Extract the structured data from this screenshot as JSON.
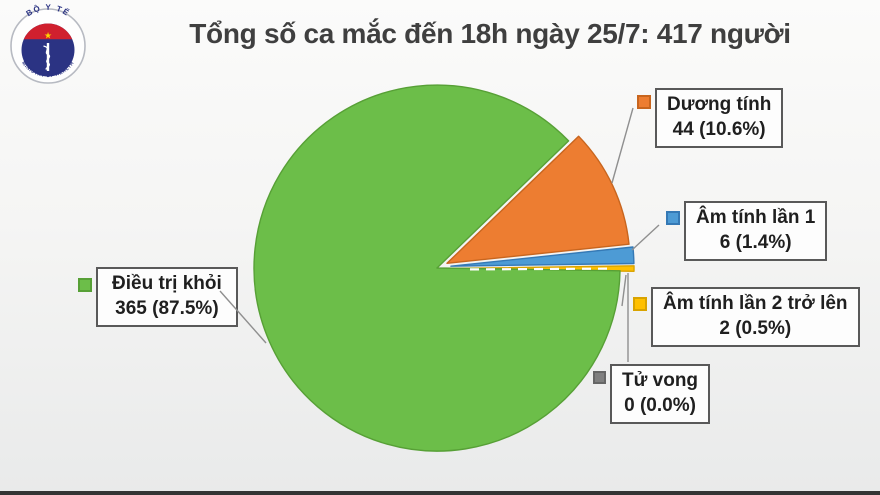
{
  "title": "Tổng số ca mắc đến 18h ngày 25/7: 417 người",
  "logo": {
    "top_text": "BỘ Y TẾ",
    "bottom_text": "MINISTRY OF HEALTH"
  },
  "chart_data": {
    "type": "pie",
    "title": "Tổng số ca mắc đến 18h ngày 25/7: 417 người",
    "total": 417,
    "total_unit": "người",
    "start_angle_deg": 44,
    "direction": "clockwise",
    "legend_position": "callout-labels",
    "slices": [
      {
        "label": "Dương tính",
        "value": 44,
        "pct": 10.6,
        "value_label": "44 (10.6%)",
        "color": "#ED7D31",
        "border": "#c8651e"
      },
      {
        "label": "Âm tính lần 1",
        "value": 6,
        "pct": 1.4,
        "value_label": "6 (1.4%)",
        "color": "#4D9BD5",
        "border": "#3579b5"
      },
      {
        "label": "Âm tính lần 2 trở lên",
        "value": 2,
        "pct": 0.5,
        "value_label": "2 (0.5%)",
        "color": "#FFC000",
        "border": "#d9a300"
      },
      {
        "label": "Tử vong",
        "value": 0,
        "pct": 0.0,
        "value_label": "0 (0.0%)",
        "color": "#7F7F7F",
        "border": "#666666"
      },
      {
        "label": "Điều trị khỏi",
        "value": 365,
        "pct": 87.5,
        "value_label": "365 (87.5%)",
        "color": "#6CBE49",
        "border": "#57a036"
      }
    ]
  }
}
